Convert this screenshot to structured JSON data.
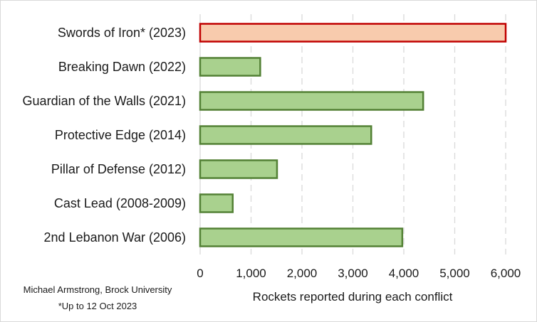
{
  "chart_data": {
    "type": "bar",
    "orientation": "horizontal",
    "categories": [
      "Swords of Iron* (2023)",
      "Breaking Dawn (2022)",
      "Guardian of the Walls (2021)",
      "Protective Edge (2014)",
      "Pillar of Defense (2012)",
      "Cast Lead (2008-2009)",
      "2nd Lebanon War (2006)"
    ],
    "values": [
      6000,
      1180,
      4380,
      3360,
      1510,
      640,
      3970
    ],
    "highlight_index": 0,
    "xlabel": "Rockets reported during each conflict",
    "xlim": [
      0,
      6000
    ],
    "xticks": [
      0,
      1000,
      2000,
      3000,
      4000,
      5000,
      6000
    ],
    "xtick_labels": [
      "0",
      "1,000",
      "2,000",
      "3,000",
      "4,000",
      "5,000",
      "6,000"
    ],
    "grid": "vertical-dashed",
    "colors": {
      "bar_fill": "#a9d18e",
      "bar_stroke": "#538135",
      "highlight_fill": "#f8cbad",
      "highlight_stroke": "#c00000",
      "grid": "#d9d9d9"
    }
  },
  "credit": "Michael Armstrong, Brock University",
  "footnote": "*Up to 12 Oct 2023"
}
